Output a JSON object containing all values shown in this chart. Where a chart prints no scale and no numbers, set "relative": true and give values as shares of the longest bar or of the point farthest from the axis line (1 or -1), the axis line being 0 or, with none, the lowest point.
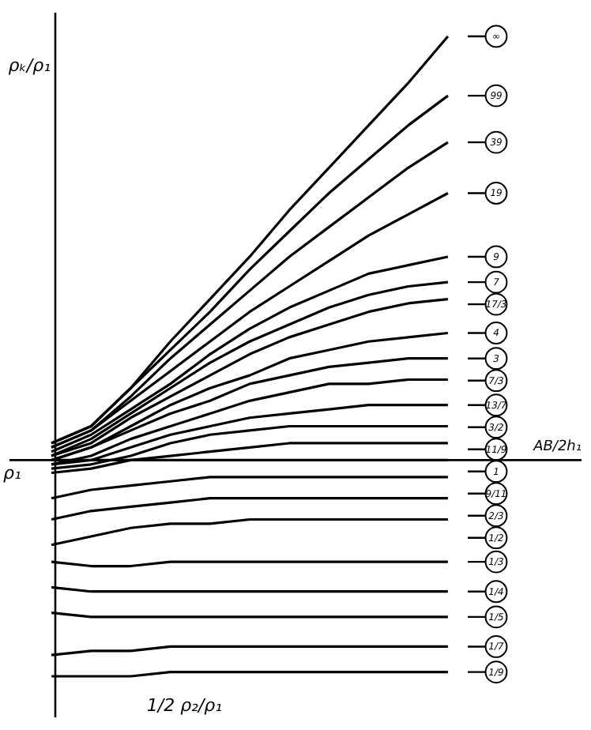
{
  "chart_data": {
    "type": "line",
    "relative": true,
    "ylabel": "ρₖ/ρ₁",
    "xlabel": "AB/2h₁",
    "categories": [
      null,
      null,
      null,
      null,
      null,
      null,
      null,
      null,
      null,
      null,
      null
    ],
    "legend": "right",
    "line_style": "solid",
    "annotations": [
      "ρ₁",
      "1/2  ρ₂/ρ₁"
    ],
    "series": [
      {
        "name": "∞",
        "color": "#000000",
        "values": [
          0.04,
          0.08,
          0.17,
          0.28,
          0.38,
          0.48,
          0.59,
          0.69,
          0.79,
          0.89,
          1.0
        ]
      },
      {
        "name": "99",
        "color": "#000000",
        "values": [
          0.04,
          0.08,
          0.17,
          0.26,
          0.35,
          0.45,
          0.54,
          0.63,
          0.71,
          0.79,
          0.86
        ]
      },
      {
        "name": "39",
        "color": "#000000",
        "values": [
          0.03,
          0.07,
          0.15,
          0.24,
          0.32,
          0.4,
          0.48,
          0.55,
          0.62,
          0.69,
          0.75
        ]
      },
      {
        "name": "19",
        "color": "#000000",
        "values": [
          0.03,
          0.07,
          0.14,
          0.21,
          0.28,
          0.35,
          0.41,
          0.47,
          0.53,
          0.58,
          0.63
        ]
      },
      {
        "name": "9",
        "color": "#000000",
        "values": [
          0.02,
          0.06,
          0.12,
          0.18,
          0.25,
          0.31,
          0.36,
          0.4,
          0.44,
          0.46,
          0.48
        ]
      },
      {
        "name": "7",
        "color": "#000000",
        "values": [
          0.01,
          0.05,
          0.11,
          0.17,
          0.23,
          0.28,
          0.32,
          0.36,
          0.39,
          0.41,
          0.42
        ]
      },
      {
        "name": "17/3",
        "color": "#000000",
        "values": [
          0.01,
          0.04,
          0.1,
          0.15,
          0.2,
          0.25,
          0.29,
          0.32,
          0.35,
          0.37,
          0.38
        ]
      },
      {
        "name": "4",
        "color": "#000000",
        "values": [
          0.0,
          0.03,
          0.08,
          0.13,
          0.17,
          0.2,
          0.24,
          0.26,
          0.28,
          0.29,
          0.3
        ]
      },
      {
        "name": "3",
        "color": "#000000",
        "values": [
          0.0,
          0.03,
          0.07,
          0.11,
          0.14,
          0.18,
          0.2,
          0.22,
          0.23,
          0.24,
          0.24
        ]
      },
      {
        "name": "7/3",
        "color": "#000000",
        "values": [
          -0.01,
          0.01,
          0.05,
          0.08,
          0.11,
          0.14,
          0.16,
          0.18,
          0.18,
          0.19,
          0.19
        ]
      },
      {
        "name": "13/7",
        "color": "#000000",
        "values": [
          -0.01,
          0.0,
          0.03,
          0.06,
          0.08,
          0.1,
          0.11,
          0.12,
          0.13,
          0.13,
          0.13
        ]
      },
      {
        "name": "3/2",
        "color": "#000000",
        "values": [
          -0.02,
          -0.01,
          0.01,
          0.04,
          0.06,
          0.07,
          0.08,
          0.08,
          0.08,
          0.08,
          0.08
        ]
      },
      {
        "name": "11/9",
        "color": "#000000",
        "values": [
          -0.03,
          -0.02,
          0.0,
          0.01,
          0.02,
          0.03,
          0.04,
          0.04,
          0.04,
          0.04,
          0.04
        ]
      },
      {
        "name": "1",
        "color": "#000000",
        "values": [
          0,
          0,
          0,
          0,
          0,
          0,
          0,
          0,
          0,
          0,
          0
        ]
      },
      {
        "name": "9/11",
        "color": "#000000",
        "values": [
          -0.09,
          -0.07,
          -0.06,
          -0.05,
          -0.04,
          -0.04,
          -0.04,
          -0.04,
          -0.04,
          -0.04,
          -0.04
        ]
      },
      {
        "name": "2/3",
        "color": "#000000",
        "values": [
          -0.14,
          -0.12,
          -0.11,
          -0.1,
          -0.09,
          -0.09,
          -0.09,
          -0.09,
          -0.09,
          -0.09,
          -0.09
        ]
      },
      {
        "name": "1/2",
        "color": "#000000",
        "values": [
          -0.2,
          -0.18,
          -0.16,
          -0.15,
          -0.15,
          -0.14,
          -0.14,
          -0.14,
          -0.14,
          -0.14,
          -0.14
        ]
      },
      {
        "name": "1/3",
        "color": "#000000",
        "values": [
          -0.24,
          -0.25,
          -0.25,
          -0.24,
          -0.24,
          -0.24,
          -0.24,
          -0.24,
          -0.24,
          -0.24,
          -0.24
        ]
      },
      {
        "name": "1/4",
        "color": "#000000",
        "values": [
          -0.3,
          -0.31,
          -0.31,
          -0.31,
          -0.31,
          -0.31,
          -0.31,
          -0.31,
          -0.31,
          -0.31,
          -0.31
        ]
      },
      {
        "name": "1/5",
        "color": "#000000",
        "values": [
          -0.36,
          -0.37,
          -0.37,
          -0.37,
          -0.37,
          -0.37,
          -0.37,
          -0.37,
          -0.37,
          -0.37,
          -0.37
        ]
      },
      {
        "name": "1/7",
        "color": "#000000",
        "values": [
          -0.46,
          -0.45,
          -0.45,
          -0.44,
          -0.44,
          -0.44,
          -0.44,
          -0.44,
          -0.44,
          -0.44,
          -0.44
        ]
      },
      {
        "name": "1/9",
        "color": "#000000",
        "values": [
          -0.51,
          -0.51,
          -0.51,
          -0.5,
          -0.5,
          -0.5,
          -0.5,
          -0.5,
          -0.5,
          -0.5,
          -0.5
        ]
      }
    ]
  }
}
